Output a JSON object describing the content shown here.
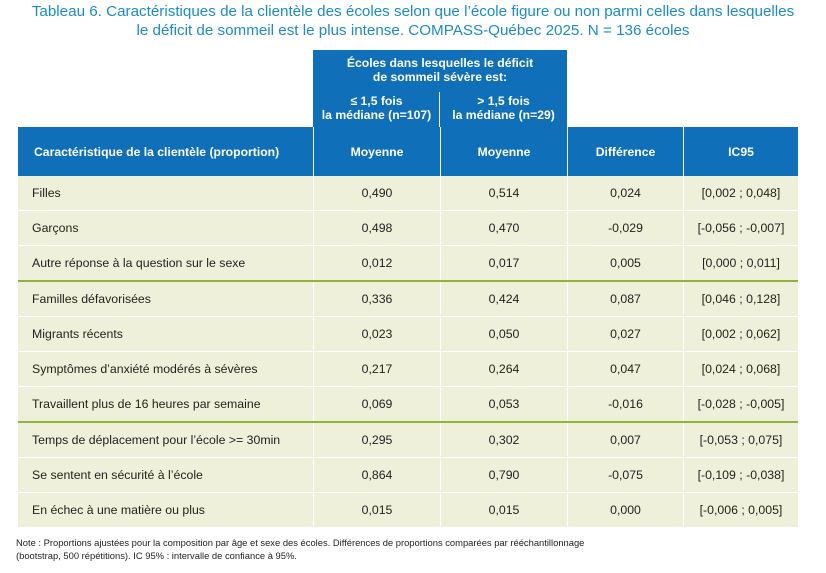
{
  "title": {
    "line1": "Tableau 6. Caractéristiques de la clientèle des écoles selon que l’école figure ou non parmi celles dans lesquelles",
    "line2": "le déficit de sommeil est le plus intense. COMPASS-Québec 2025. N = 136 écoles"
  },
  "group_header": {
    "line1": "Écoles dans lesquelles le déficit",
    "line2": "de sommeil sévère est:",
    "sub_left_line1": "≤ 1,5 fois",
    "sub_left_line2": "la médiane (n=107)",
    "sub_right_line1": "> 1,5 fois",
    "sub_right_line2": "la médiane (n=29)"
  },
  "columns": {
    "characteristic": "Caractéristique de la clientèle (proportion)",
    "mean_left": "Moyenne",
    "mean_right": "Moyenne",
    "difference": "Différence",
    "ci": "IC95"
  },
  "rows": [
    {
      "label": "Filles",
      "m1": "0,490",
      "m2": "0,514",
      "diff": "0,024",
      "ci": "[0,002 ; 0,048]"
    },
    {
      "label": "Garçons",
      "m1": "0,498",
      "m2": "0,470",
      "diff": "-0,029",
      "ci": "[-0,056 ; -0,007]"
    },
    {
      "label": "Autre réponse à la question sur le sexe",
      "m1": "0,012",
      "m2": "0,017",
      "diff": "0,005",
      "ci": "[0,000 ; 0,011]"
    },
    {
      "label": "Familles défavorisées",
      "m1": "0,336",
      "m2": "0,424",
      "diff": "0,087",
      "ci": "[0,046 ; 0,128]"
    },
    {
      "label": "Migrants récents",
      "m1": "0,023",
      "m2": "0,050",
      "diff": "0,027",
      "ci": "[0,002 ; 0,062]"
    },
    {
      "label": "Symptômes d’anxiété modérés à sévères",
      "m1": "0,217",
      "m2": "0,264",
      "diff": "0,047",
      "ci": "[0,024 ; 0,068]"
    },
    {
      "label": "Travaillent plus de 16 heures par semaine",
      "m1": "0,069",
      "m2": "0,053",
      "diff": "-0,016",
      "ci": "[-0,028 ; -0,005]"
    },
    {
      "label": "Temps de déplacement pour l’école >= 30min",
      "m1": "0,295",
      "m2": "0,302",
      "diff": "0,007",
      "ci": "[-0,053 ; 0,075]"
    },
    {
      "label": "Se sentent en sécurité à l’école",
      "m1": "0,864",
      "m2": "0,790",
      "diff": "-0,075",
      "ci": "[-0,109 ; -0,038]"
    },
    {
      "label": "En échec à une matière ou plus",
      "m1": "0,015",
      "m2": "0,015",
      "diff": "0,000",
      "ci": "[-0,006 ; 0,005]"
    }
  ],
  "note": {
    "line1": "Note : Proportions ajustées pour la composition par âge et sexe des écoles. Différences de proportions comparées par rééchantillonnage",
    "line2": "(bootstrap, 500 répétitions). IC 95% : intervalle de confiance à 95%."
  },
  "colors": {
    "header_blue": "#0f6fb8",
    "title_blue": "#1b8bc9",
    "row_bg": "#eef0d9",
    "group_line": "#92b43a"
  }
}
